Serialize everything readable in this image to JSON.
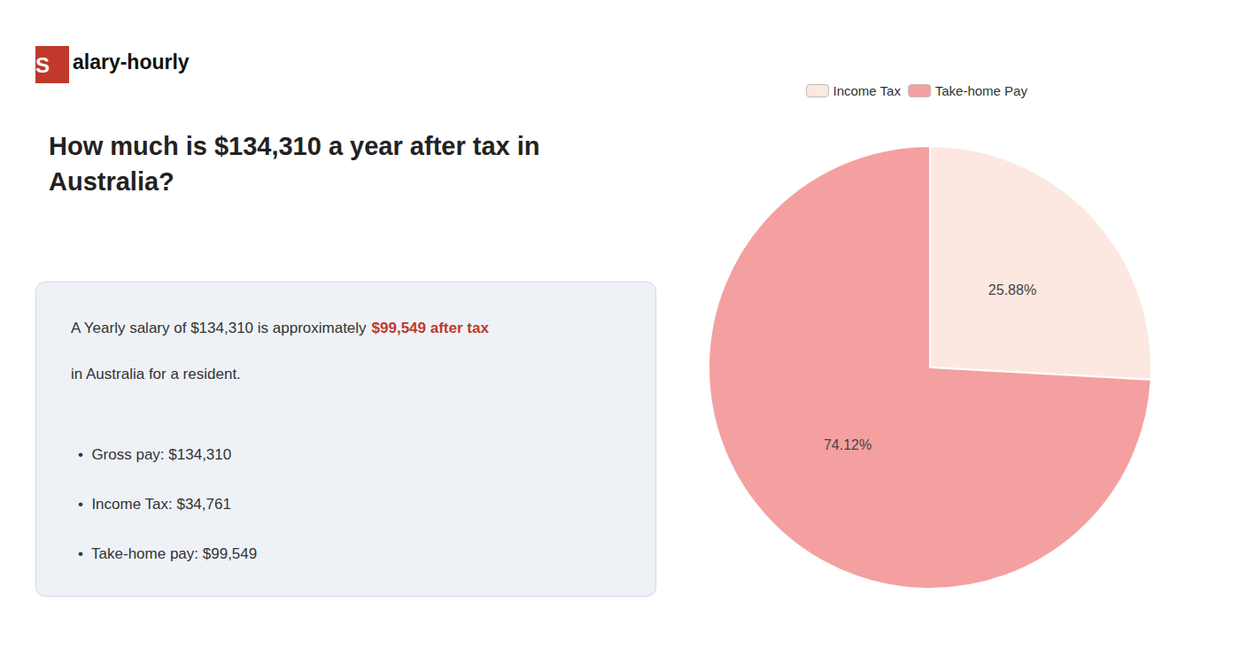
{
  "chart_data": {
    "type": "pie",
    "title": "How much is $134,310 a year after tax in\nAustralia?",
    "categories": [
      "Income Tax",
      "Take-home Pay"
    ],
    "values": [
      25.88,
      74.12
    ],
    "value_labels": [
      "25.88%",
      "74.12%"
    ],
    "data_labels": true,
    "colors": [
      "#fce8e0",
      "#f4a0a0"
    ],
    "legend": "top",
    "annotations": [
      {
        "text": "S",
        "color": "#c0392b"
      },
      {
        "text": "alary-hourly"
      },
      {
        "text": "A Yearly salary of $134,310 is approximately "
      },
      {
        "text": "$99,549 after tax",
        "color": "#c0392b"
      },
      {
        "text": "in Australia for a resident."
      },
      {
        "text": "•  Gross pay: $134,310"
      },
      {
        "text": "•  Income Tax: $34,761"
      },
      {
        "text": "•  Take-home pay: $99,549"
      }
    ]
  }
}
